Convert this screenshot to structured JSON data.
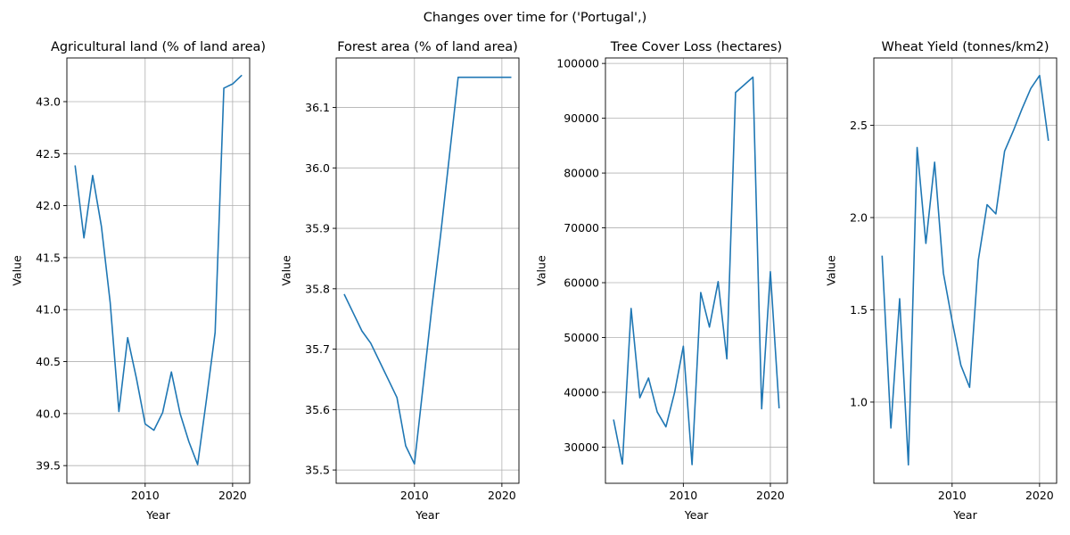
{
  "figure": {
    "suptitle": "Changes over time for ('Portugal',)",
    "line_color": "#1f77b4"
  },
  "chart_data": [
    {
      "type": "line",
      "title": "Agricultural land (% of land area)",
      "xlabel": "Year",
      "ylabel": "Value",
      "grid": true,
      "xlim": [
        2001.05,
        2021.95
      ],
      "ylim": [
        39.33,
        43.42
      ],
      "xticks": [
        {
          "value": 2010,
          "label": "2010"
        },
        {
          "value": 2020,
          "label": "2020"
        }
      ],
      "yticks": [
        {
          "value": 39.5,
          "label": "39.5"
        },
        {
          "value": 40.0,
          "label": "40.0"
        },
        {
          "value": 40.5,
          "label": "40.5"
        },
        {
          "value": 41.0,
          "label": "41.0"
        },
        {
          "value": 41.5,
          "label": "41.5"
        },
        {
          "value": 42.0,
          "label": "42.0"
        },
        {
          "value": 42.5,
          "label": "42.5"
        },
        {
          "value": 43.0,
          "label": "43.0"
        }
      ],
      "x": [
        2002,
        2003,
        2004,
        2005,
        2006,
        2007,
        2008,
        2009,
        2010,
        2011,
        2012,
        2013,
        2014,
        2015,
        2016,
        2017,
        2018,
        2019,
        2020,
        2021
      ],
      "y": [
        42.38,
        41.69,
        42.29,
        41.8,
        41.07,
        40.02,
        40.73,
        40.34,
        39.9,
        39.84,
        40.01,
        40.4,
        40.0,
        39.73,
        39.51,
        40.13,
        40.78,
        43.13,
        43.17,
        43.25
      ]
    },
    {
      "type": "line",
      "title": "Forest area (% of land area)",
      "xlabel": "Year",
      "ylabel": "Value",
      "grid": true,
      "xlim": [
        2001.05,
        2021.95
      ],
      "ylim": [
        35.478,
        36.182
      ],
      "xticks": [
        {
          "value": 2010,
          "label": "2010"
        },
        {
          "value": 2020,
          "label": "2020"
        }
      ],
      "yticks": [
        {
          "value": 35.5,
          "label": "35.5"
        },
        {
          "value": 35.6,
          "label": "35.6"
        },
        {
          "value": 35.7,
          "label": "35.7"
        },
        {
          "value": 35.8,
          "label": "35.8"
        },
        {
          "value": 35.9,
          "label": "35.9"
        },
        {
          "value": 36.0,
          "label": "36.0"
        },
        {
          "value": 36.1,
          "label": "36.1"
        }
      ],
      "x": [
        2002,
        2003,
        2004,
        2005,
        2006,
        2007,
        2008,
        2009,
        2010,
        2011,
        2012,
        2013,
        2014,
        2015,
        2016,
        2017,
        2018,
        2019,
        2020,
        2021
      ],
      "y": [
        35.79,
        35.76,
        35.73,
        35.71,
        35.68,
        35.65,
        35.62,
        35.54,
        35.51,
        35.64,
        35.77,
        35.89,
        36.02,
        36.15,
        36.15,
        36.15,
        36.15,
        36.15,
        36.15,
        36.15
      ]
    },
    {
      "type": "line",
      "title": "Tree Cover Loss (hectares)",
      "xlabel": "Year",
      "ylabel": "Value",
      "grid": true,
      "xlim": [
        2001.05,
        2021.95
      ],
      "ylim": [
        23400,
        101000
      ],
      "xticks": [
        {
          "value": 2010,
          "label": "2010"
        },
        {
          "value": 2020,
          "label": "2020"
        }
      ],
      "yticks": [
        {
          "value": 30000,
          "label": "30000"
        },
        {
          "value": 40000,
          "label": "40000"
        },
        {
          "value": 50000,
          "label": "50000"
        },
        {
          "value": 60000,
          "label": "60000"
        },
        {
          "value": 70000,
          "label": "70000"
        },
        {
          "value": 80000,
          "label": "80000"
        },
        {
          "value": 90000,
          "label": "90000"
        },
        {
          "value": 100000,
          "label": "100000"
        }
      ],
      "x": [
        2002,
        2003,
        2004,
        2005,
        2006,
        2007,
        2008,
        2009,
        2010,
        2011,
        2012,
        2013,
        2014,
        2015,
        2016,
        2017,
        2018,
        2019,
        2020,
        2021
      ],
      "y": [
        34900,
        26900,
        55300,
        39000,
        42600,
        36400,
        33700,
        40000,
        48400,
        26800,
        58200,
        51900,
        60200,
        46100,
        94700,
        96100,
        97500,
        37000,
        62000,
        37200
      ]
    },
    {
      "type": "line",
      "title": "Wheat Yield (tonnes/km2)",
      "xlabel": "Year",
      "ylabel": "Value",
      "grid": true,
      "xlim": [
        2001.05,
        2021.95
      ],
      "ylim": [
        0.56,
        2.865
      ],
      "xticks": [
        {
          "value": 2010,
          "label": "2010"
        },
        {
          "value": 2020,
          "label": "2020"
        }
      ],
      "yticks": [
        {
          "value": 1.0,
          "label": "1.0"
        },
        {
          "value": 1.5,
          "label": "1.5"
        },
        {
          "value": 2.0,
          "label": "2.0"
        },
        {
          "value": 2.5,
          "label": "2.5"
        }
      ],
      "x": [
        2002,
        2003,
        2004,
        2005,
        2006,
        2007,
        2008,
        2009,
        2010,
        2011,
        2012,
        2013,
        2014,
        2015,
        2016,
        2017,
        2018,
        2019,
        2020,
        2021
      ],
      "y": [
        1.79,
        0.86,
        1.56,
        0.66,
        2.38,
        1.86,
        2.3,
        1.7,
        1.44,
        1.2,
        1.08,
        1.77,
        2.07,
        2.02,
        2.36,
        2.47,
        2.59,
        2.7,
        2.77,
        2.42
      ]
    }
  ]
}
